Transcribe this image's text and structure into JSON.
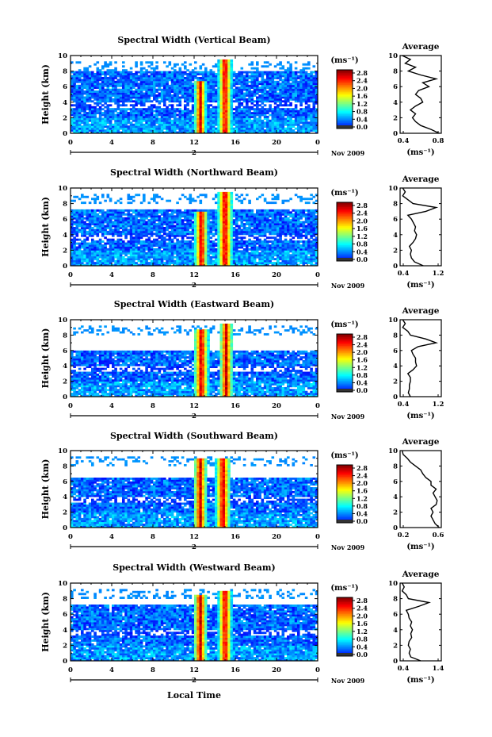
{
  "common": {
    "ylabel": "Height (km)",
    "xlabel": "Local Time",
    "date_label": "Nov 2009",
    "day_marker": "2",
    "unit_label": "(ms⁻¹)",
    "colorbar_ticks": [
      "0.0",
      "0.4",
      "0.8",
      "1.2",
      "1.6",
      "2.0",
      "2.4",
      "2.8"
    ],
    "height_ticks": [
      "0",
      "2",
      "4",
      "6",
      "8",
      "10"
    ],
    "time_ticks": [
      "0",
      "4",
      "8",
      "12",
      "16",
      "20",
      "0"
    ],
    "avg_title": "Average",
    "avg_unit": "(ms⁻¹)"
  },
  "chart_data": [
    {
      "type": "heatmap",
      "title": "Spectral Width (Vertical Beam)",
      "xlabel": "",
      "ylabel": "Height (km)",
      "xlim": [
        0,
        24
      ],
      "ylim": [
        0,
        10
      ],
      "clim": [
        0.0,
        2.8
      ],
      "x_ticks": [
        0,
        4,
        8,
        12,
        16,
        20,
        24
      ],
      "avg_profile": {
        "xlim": [
          0.4,
          0.8
        ],
        "x_tick_labels": [
          "0.4",
          "0.8"
        ],
        "height": [
          0,
          0.5,
          1,
          1.5,
          2,
          2.5,
          3,
          3.5,
          4,
          4.5,
          5,
          5.5,
          6,
          6.5,
          7,
          7.5,
          8,
          8.5,
          9,
          9.5,
          10
        ],
        "values": [
          0.78,
          0.7,
          0.6,
          0.55,
          0.52,
          0.55,
          0.5,
          0.55,
          0.62,
          0.6,
          0.55,
          0.58,
          0.68,
          0.62,
          0.75,
          0.6,
          0.48,
          0.55,
          0.45,
          0.5,
          0.42
        ]
      }
    },
    {
      "type": "heatmap",
      "title": "Spectral Width (Northward Beam)",
      "xlabel": "",
      "ylabel": "Height (km)",
      "xlim": [
        0,
        24
      ],
      "ylim": [
        0,
        10
      ],
      "clim": [
        0.0,
        2.8
      ],
      "x_ticks": [
        0,
        4,
        8,
        12,
        16,
        20,
        24
      ],
      "avg_profile": {
        "xlim": [
          0.4,
          1.2
        ],
        "x_tick_labels": [
          "0.4",
          "1.2"
        ],
        "height": [
          0,
          0.5,
          1,
          1.5,
          2,
          2.5,
          3,
          3.5,
          4,
          4.5,
          5,
          5.5,
          6,
          6.5,
          7,
          7.5,
          8,
          8.5,
          9,
          9.5,
          10
        ],
        "values": [
          0.85,
          0.68,
          0.62,
          0.6,
          0.62,
          0.58,
          0.65,
          0.7,
          0.72,
          0.68,
          0.7,
          0.66,
          0.62,
          0.55,
          0.9,
          1.1,
          0.65,
          0.55,
          0.45,
          0.5,
          0.45
        ]
      }
    },
    {
      "type": "heatmap",
      "title": "Spectral Width (Eastward Beam)",
      "xlabel": "",
      "ylabel": "Height (km)",
      "xlim": [
        0,
        24
      ],
      "ylim": [
        0,
        10
      ],
      "clim": [
        0.0,
        2.8
      ],
      "x_ticks": [
        0,
        4,
        8,
        12,
        16,
        20,
        24
      ],
      "avg_profile": {
        "xlim": [
          0.4,
          1.2
        ],
        "x_tick_labels": [
          "0.4",
          "1.2"
        ],
        "height": [
          0,
          0.5,
          1,
          1.5,
          2,
          2.5,
          3,
          3.5,
          4,
          4.5,
          5,
          5.5,
          6,
          6.5,
          7,
          7.5,
          8,
          8.5,
          9,
          9.5,
          10
        ],
        "values": [
          0.6,
          0.56,
          0.58,
          0.58,
          0.6,
          0.6,
          0.55,
          0.65,
          0.72,
          0.7,
          0.7,
          0.65,
          0.62,
          0.75,
          1.1,
          0.9,
          0.6,
          0.55,
          0.45,
          0.5,
          0.45
        ]
      }
    },
    {
      "type": "heatmap",
      "title": "Spectral Width (Southward Beam)",
      "xlabel": "",
      "ylabel": "Height (km)",
      "xlim": [
        0,
        24
      ],
      "ylim": [
        0,
        10
      ],
      "clim": [
        0.0,
        2.8
      ],
      "x_ticks": [
        0,
        4,
        8,
        12,
        16,
        20,
        24
      ],
      "avg_profile": {
        "xlim": [
          0.2,
          0.6
        ],
        "x_tick_labels": [
          "0.2",
          "0.6"
        ],
        "height": [
          0,
          0.5,
          1,
          1.5,
          2,
          2.5,
          3,
          3.5,
          4,
          4.5,
          5,
          5.5,
          6,
          6.5,
          7,
          7.5,
          8,
          8.5,
          9,
          9.5,
          10
        ],
        "values": [
          0.58,
          0.54,
          0.52,
          0.5,
          0.52,
          0.5,
          0.55,
          0.56,
          0.54,
          0.52,
          0.55,
          0.5,
          0.5,
          0.45,
          0.42,
          0.4,
          0.35,
          0.3,
          0.27,
          0.23,
          0.22
        ]
      }
    },
    {
      "type": "heatmap",
      "title": "Spectral Width (Westward Beam)",
      "xlabel": "Local Time",
      "ylabel": "Height (km)",
      "xlim": [
        0,
        24
      ],
      "ylim": [
        0,
        10
      ],
      "clim": [
        0.0,
        2.8
      ],
      "x_ticks": [
        0,
        4,
        8,
        12,
        16,
        20,
        24
      ],
      "avg_profile": {
        "xlim": [
          0.4,
          1.4
        ],
        "x_tick_labels": [
          "0.4",
          "1.4"
        ],
        "height": [
          0,
          0.5,
          1,
          1.5,
          2,
          2.5,
          3,
          3.5,
          4,
          4.5,
          5,
          5.5,
          6,
          6.5,
          7,
          7.5,
          8,
          8.5,
          9,
          9.5,
          10
        ],
        "values": [
          0.9,
          0.66,
          0.62,
          0.65,
          0.6,
          0.62,
          0.68,
          0.66,
          0.7,
          0.65,
          0.68,
          0.62,
          0.6,
          0.55,
          0.85,
          1.1,
          0.6,
          0.55,
          0.45,
          0.5,
          0.45
        ]
      }
    }
  ]
}
